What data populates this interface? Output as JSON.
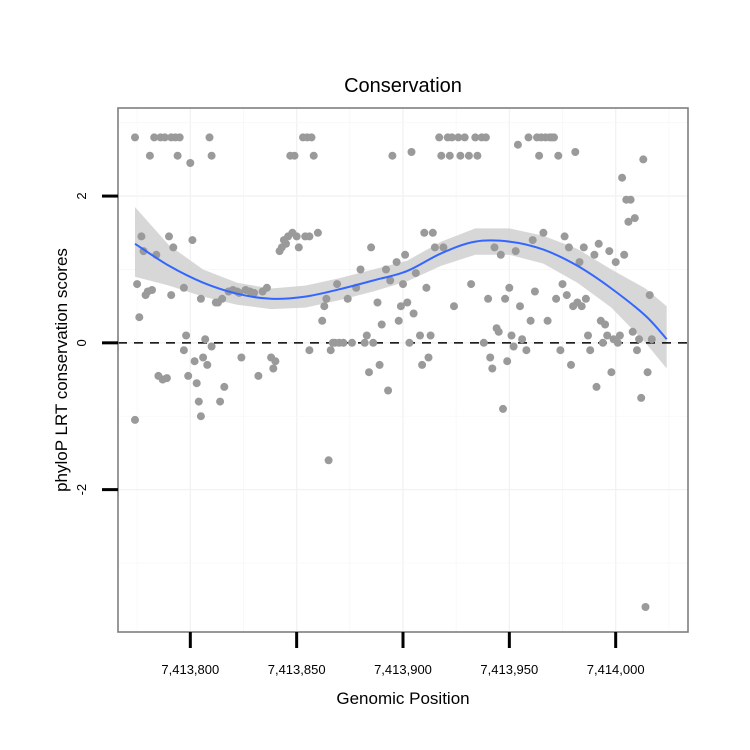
{
  "chart_data": {
    "type": "scatter",
    "title": "Conservation",
    "xlabel": "Genomic Position",
    "ylabel": "phyloP LRT conservation scores",
    "xlim": [
      7413766,
      7414034
    ],
    "ylim": [
      -3.94,
      3.2
    ],
    "x_ticks": [
      7413800,
      7413850,
      7413900,
      7413950,
      7414000
    ],
    "x_tick_labels": [
      "7,413,800",
      "7,413,850",
      "7,413,900",
      "7,413,950",
      "7,414,000"
    ],
    "y_ticks": [
      -2,
      0,
      2
    ],
    "y_tick_labels": [
      "-2",
      "0",
      "2"
    ],
    "grid": true,
    "reference_line": {
      "y": 0,
      "style": "dashed",
      "color": "#000000"
    },
    "point_color": "#9a9a9a",
    "smooth_color": "#3366ff",
    "ribbon_color": "#d0d0d0",
    "points": [
      [
        7413774,
        2.8
      ],
      [
        7413774,
        -1.05
      ],
      [
        7413775,
        0.8
      ],
      [
        7413776,
        0.35
      ],
      [
        7413777,
        1.45
      ],
      [
        7413778,
        1.25
      ],
      [
        7413779,
        0.65
      ],
      [
        7413780,
        0.7
      ],
      [
        7413781,
        2.55
      ],
      [
        7413782,
        0.72
      ],
      [
        7413783,
        2.8
      ],
      [
        7413784,
        1.2
      ],
      [
        7413785,
        -0.45
      ],
      [
        7413786,
        2.8
      ],
      [
        7413787,
        -0.5
      ],
      [
        7413788,
        2.8
      ],
      [
        7413789,
        -0.48
      ],
      [
        7413790,
        1.45
      ],
      [
        7413791,
        2.8
      ],
      [
        7413791,
        0.65
      ],
      [
        7413792,
        1.3
      ],
      [
        7413793,
        2.8
      ],
      [
        7413794,
        2.55
      ],
      [
        7413795,
        2.8
      ],
      [
        7413797,
        -0.1
      ],
      [
        7413797,
        0.75
      ],
      [
        7413798,
        0.1
      ],
      [
        7413799,
        -0.45
      ],
      [
        7413800,
        2.45
      ],
      [
        7413801,
        1.4
      ],
      [
        7413802,
        -0.25
      ],
      [
        7413803,
        -0.55
      ],
      [
        7413804,
        -0.8
      ],
      [
        7413805,
        -1.0
      ],
      [
        7413805,
        0.6
      ],
      [
        7413806,
        -0.2
      ],
      [
        7413807,
        0.05
      ],
      [
        7413808,
        -0.3
      ],
      [
        7413809,
        2.8
      ],
      [
        7413810,
        2.55
      ],
      [
        7413810,
        -0.05
      ],
      [
        7413812,
        0.55
      ],
      [
        7413813,
        0.55
      ],
      [
        7413814,
        -0.8
      ],
      [
        7413815,
        0.6
      ],
      [
        7413816,
        -0.6
      ],
      [
        7413818,
        0.7
      ],
      [
        7413820,
        0.72
      ],
      [
        7413822,
        0.7
      ],
      [
        7413823,
        0.68
      ],
      [
        7413824,
        -0.2
      ],
      [
        7413826,
        0.72
      ],
      [
        7413828,
        0.7
      ],
      [
        7413830,
        0.68
      ],
      [
        7413832,
        -0.45
      ],
      [
        7413834,
        0.7
      ],
      [
        7413836,
        0.75
      ],
      [
        7413838,
        -0.2
      ],
      [
        7413839,
        -0.35
      ],
      [
        7413840,
        -0.25
      ],
      [
        7413842,
        1.25
      ],
      [
        7413843,
        1.3
      ],
      [
        7413844,
        1.4
      ],
      [
        7413845,
        1.35
      ],
      [
        7413846,
        1.45
      ],
      [
        7413847,
        2.55
      ],
      [
        7413848,
        1.5
      ],
      [
        7413849,
        2.55
      ],
      [
        7413850,
        1.45
      ],
      [
        7413851,
        1.3
      ],
      [
        7413853,
        2.8
      ],
      [
        7413854,
        1.45
      ],
      [
        7413855,
        2.8
      ],
      [
        7413856,
        -0.1
      ],
      [
        7413856,
        1.45
      ],
      [
        7413857,
        2.8
      ],
      [
        7413858,
        2.55
      ],
      [
        7413860,
        1.5
      ],
      [
        7413862,
        0.3
      ],
      [
        7413863,
        0.5
      ],
      [
        7413864,
        0.6
      ],
      [
        7413865,
        -1.6
      ],
      [
        7413866,
        -0.1
      ],
      [
        7413867,
        0.0
      ],
      [
        7413868,
        0.0
      ],
      [
        7413869,
        0.8
      ],
      [
        7413870,
        0.0
      ],
      [
        7413872,
        0.0
      ],
      [
        7413874,
        0.6
      ],
      [
        7413876,
        0.0
      ],
      [
        7413878,
        0.75
      ],
      [
        7413880,
        1.0
      ],
      [
        7413882,
        0.0
      ],
      [
        7413883,
        0.1
      ],
      [
        7413884,
        -0.4
      ],
      [
        7413885,
        1.3
      ],
      [
        7413886,
        0.0
      ],
      [
        7413888,
        0.55
      ],
      [
        7413889,
        -0.3
      ],
      [
        7413890,
        0.25
      ],
      [
        7413892,
        1.0
      ],
      [
        7413893,
        -0.65
      ],
      [
        7413894,
        0.85
      ],
      [
        7413895,
        2.55
      ],
      [
        7413897,
        1.1
      ],
      [
        7413898,
        0.3
      ],
      [
        7413899,
        0.5
      ],
      [
        7413900,
        0.8
      ],
      [
        7413901,
        1.2
      ],
      [
        7413902,
        0.55
      ],
      [
        7413903,
        0.0
      ],
      [
        7413904,
        2.6
      ],
      [
        7413905,
        0.4
      ],
      [
        7413906,
        0.95
      ],
      [
        7413908,
        0.1
      ],
      [
        7413909,
        -0.3
      ],
      [
        7413910,
        1.5
      ],
      [
        7413911,
        0.75
      ],
      [
        7413912,
        -0.2
      ],
      [
        7413913,
        0.1
      ],
      [
        7413914,
        1.5
      ],
      [
        7413915,
        1.3
      ],
      [
        7413917,
        2.8
      ],
      [
        7413918,
        2.55
      ],
      [
        7413919,
        1.3
      ],
      [
        7413921,
        2.8
      ],
      [
        7413922,
        2.55
      ],
      [
        7413923,
        2.8
      ],
      [
        7413924,
        0.5
      ],
      [
        7413926,
        2.8
      ],
      [
        7413927,
        2.55
      ],
      [
        7413929,
        2.8
      ],
      [
        7413931,
        2.55
      ],
      [
        7413932,
        0.8
      ],
      [
        7413934,
        2.8
      ],
      [
        7413935,
        2.55
      ],
      [
        7413937,
        2.8
      ],
      [
        7413938,
        0.0
      ],
      [
        7413939,
        2.8
      ],
      [
        7413940,
        0.6
      ],
      [
        7413941,
        -0.2
      ],
      [
        7413942,
        -0.35
      ],
      [
        7413943,
        1.3
      ],
      [
        7413944,
        0.2
      ],
      [
        7413945,
        0.15
      ],
      [
        7413946,
        1.2
      ],
      [
        7413947,
        -0.9
      ],
      [
        7413948,
        0.6
      ],
      [
        7413949,
        -0.25
      ],
      [
        7413950,
        0.75
      ],
      [
        7413951,
        0.1
      ],
      [
        7413952,
        -0.05
      ],
      [
        7413953,
        1.25
      ],
      [
        7413954,
        2.7
      ],
      [
        7413955,
        0.5
      ],
      [
        7413956,
        0.05
      ],
      [
        7413958,
        -0.1
      ],
      [
        7413959,
        2.8
      ],
      [
        7413960,
        0.3
      ],
      [
        7413961,
        1.4
      ],
      [
        7413962,
        0.7
      ],
      [
        7413963,
        2.8
      ],
      [
        7413964,
        2.55
      ],
      [
        7413965,
        2.8
      ],
      [
        7413966,
        1.5
      ],
      [
        7413967,
        2.8
      ],
      [
        7413968,
        0.3
      ],
      [
        7413969,
        2.8
      ],
      [
        7413970,
        2.8
      ],
      [
        7413971,
        2.8
      ],
      [
        7413972,
        0.6
      ],
      [
        7413973,
        2.55
      ],
      [
        7413974,
        -0.1
      ],
      [
        7413975,
        0.8
      ],
      [
        7413976,
        1.45
      ],
      [
        7413977,
        0.65
      ],
      [
        7413978,
        1.3
      ],
      [
        7413979,
        -0.3
      ],
      [
        7413980,
        0.5
      ],
      [
        7413981,
        2.6
      ],
      [
        7413982,
        0.55
      ],
      [
        7413983,
        1.1
      ],
      [
        7413984,
        0.5
      ],
      [
        7413985,
        1.3
      ],
      [
        7413986,
        0.6
      ],
      [
        7413987,
        0.1
      ],
      [
        7413988,
        -0.1
      ],
      [
        7413990,
        1.2
      ],
      [
        7413991,
        -0.6
      ],
      [
        7413992,
        1.35
      ],
      [
        7413993,
        0.3
      ],
      [
        7413994,
        0.0
      ],
      [
        7413995,
        0.25
      ],
      [
        7413996,
        0.1
      ],
      [
        7413997,
        1.25
      ],
      [
        7413998,
        -0.4
      ],
      [
        7413999,
        0.05
      ],
      [
        7414000,
        1.1
      ],
      [
        7414001,
        0.0
      ],
      [
        7414002,
        0.1
      ],
      [
        7414003,
        2.25
      ],
      [
        7414004,
        1.2
      ],
      [
        7414005,
        1.95
      ],
      [
        7414006,
        1.65
      ],
      [
        7414007,
        1.95
      ],
      [
        7414008,
        0.15
      ],
      [
        7414009,
        1.7
      ],
      [
        7414010,
        -0.1
      ],
      [
        7414011,
        0.05
      ],
      [
        7414012,
        -0.75
      ],
      [
        7414013,
        2.5
      ],
      [
        7414014,
        -3.6
      ],
      [
        7414015,
        -0.4
      ],
      [
        7414016,
        0.65
      ],
      [
        7414017,
        0.05
      ]
    ],
    "smooth": {
      "x": [
        7413774,
        7413790,
        7413806,
        7413822,
        7413838,
        7413854,
        7413870,
        7413886,
        7413902,
        7413918,
        7413934,
        7413950,
        7413966,
        7413982,
        7413998,
        7414014,
        7414024
      ],
      "y": [
        1.35,
        1.05,
        0.82,
        0.67,
        0.6,
        0.63,
        0.73,
        0.85,
        0.98,
        1.22,
        1.38,
        1.38,
        1.27,
        1.05,
        0.74,
        0.37,
        0.05
      ],
      "lower": [
        0.9,
        0.78,
        0.63,
        0.52,
        0.46,
        0.48,
        0.58,
        0.7,
        0.84,
        1.05,
        1.2,
        1.2,
        1.08,
        0.82,
        0.48,
        0.0,
        -0.35
      ],
      "upper": [
        1.85,
        1.33,
        1.0,
        0.82,
        0.74,
        0.78,
        0.88,
        1.0,
        1.12,
        1.38,
        1.56,
        1.56,
        1.46,
        1.28,
        1.0,
        0.74,
        0.5
      ]
    }
  }
}
